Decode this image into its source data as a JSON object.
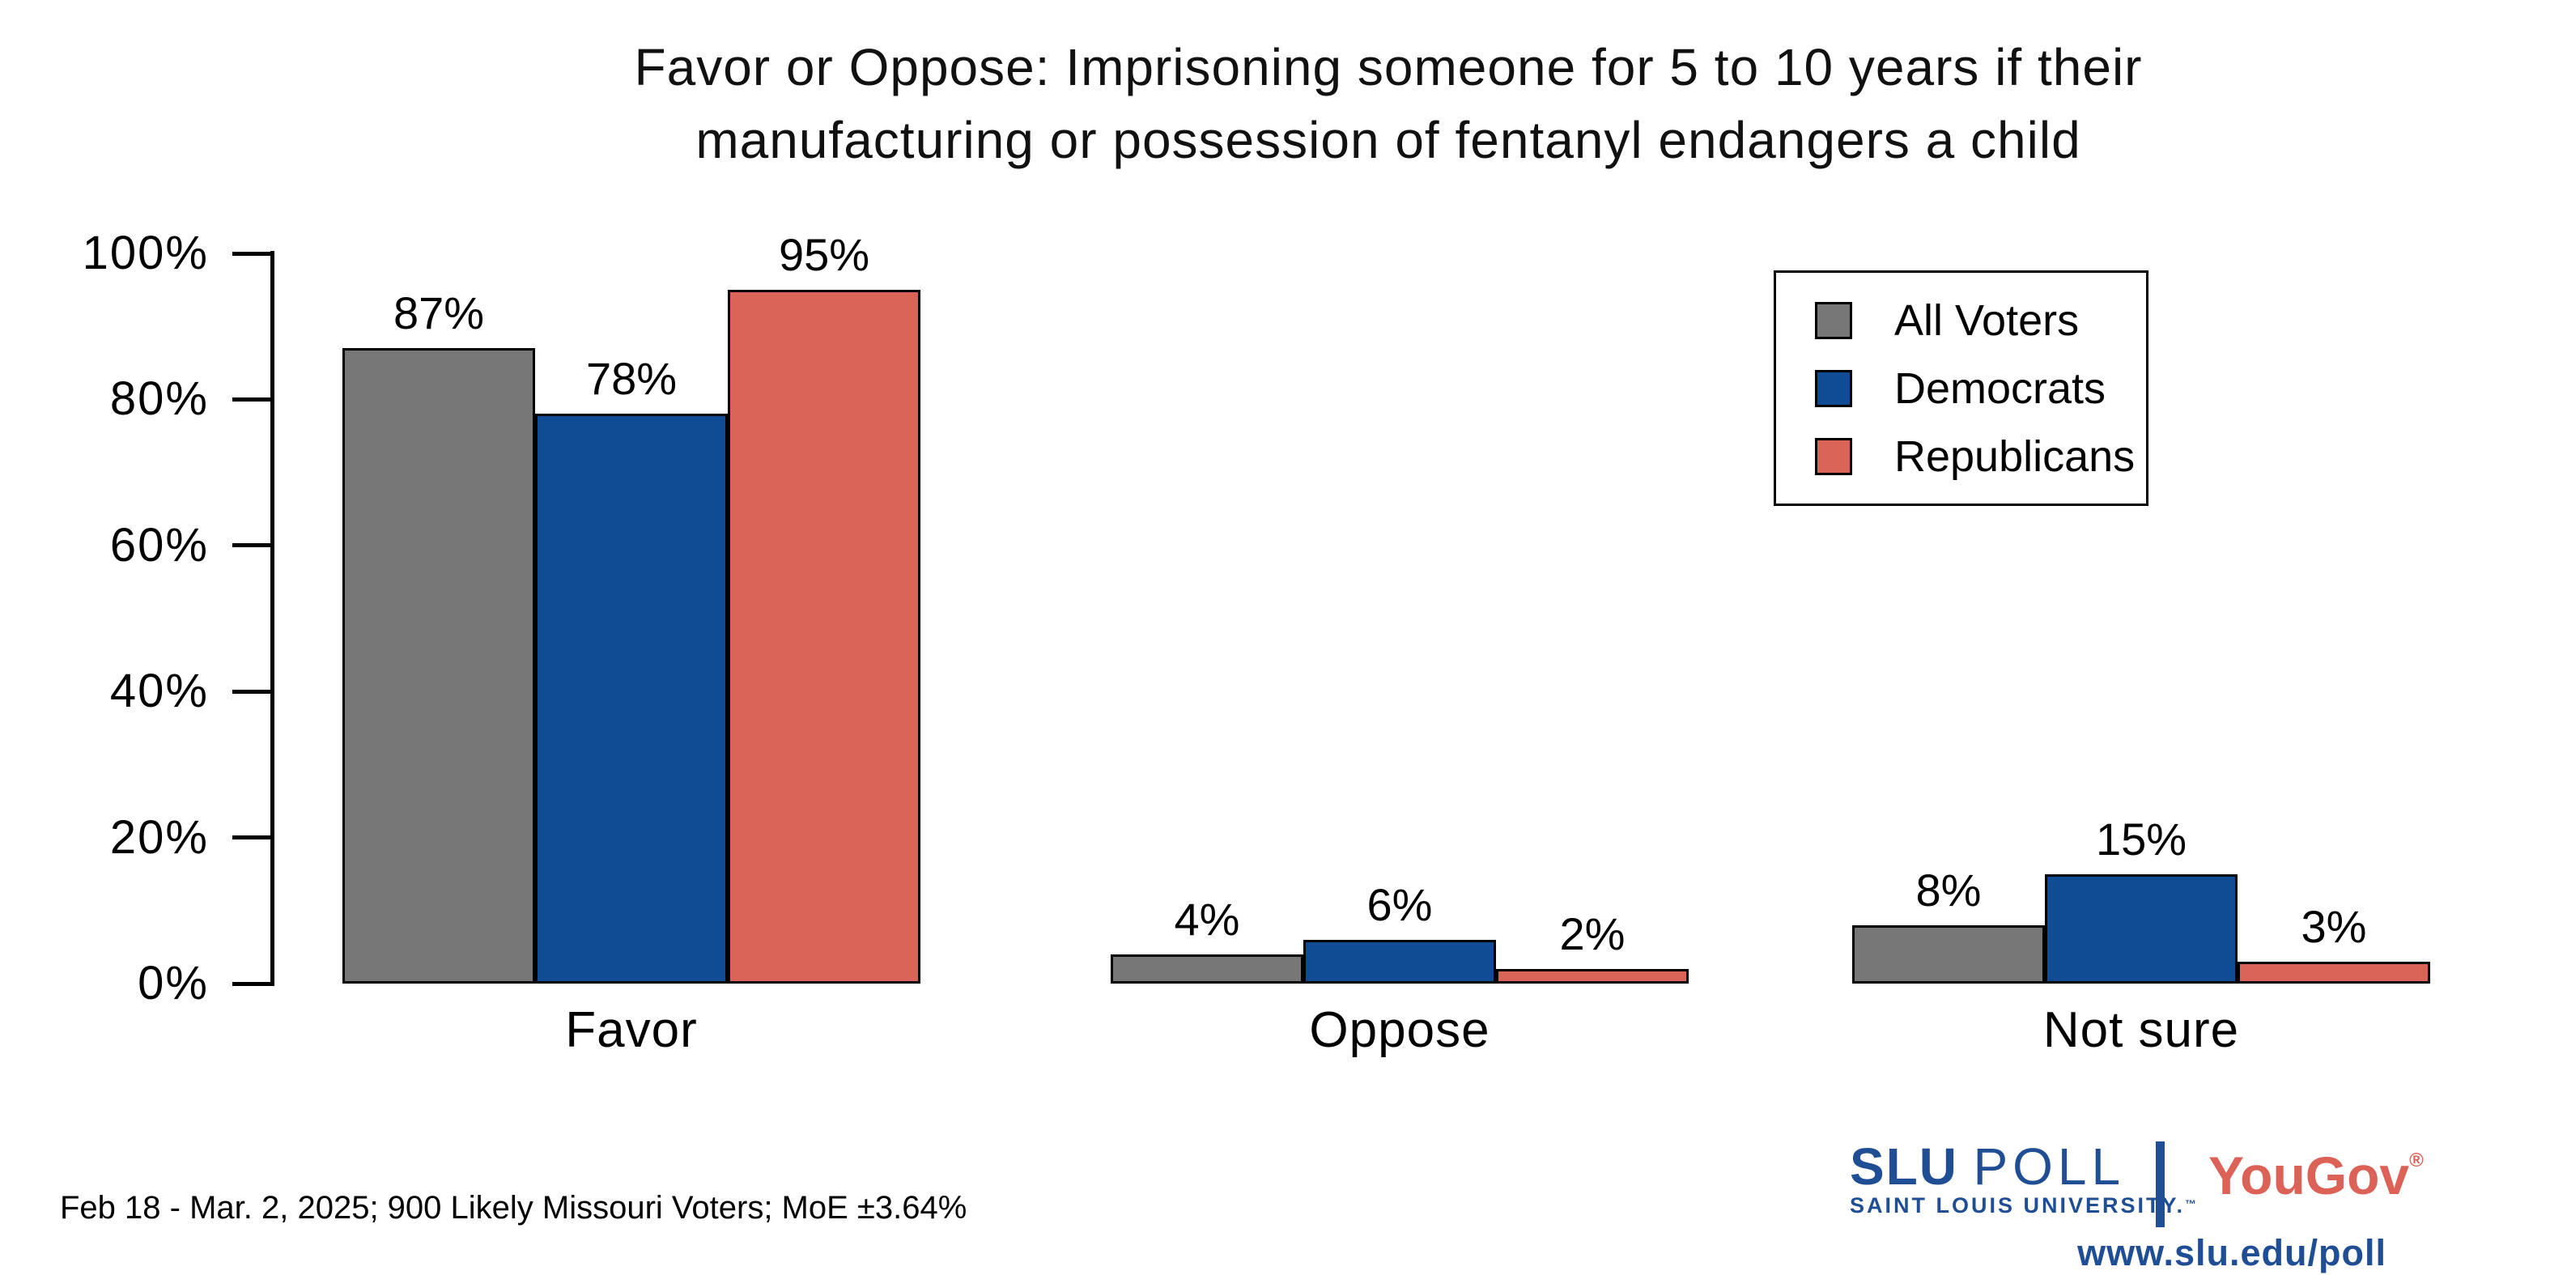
{
  "title": {
    "line1": "Favor or Oppose: Imprisoning someone for 5 to 10 years if their",
    "line2": "manufacturing or possession of fentanyl endangers a child"
  },
  "chart_data": {
    "type": "bar",
    "title": "Favor or Oppose: Imprisoning someone for 5 to 10 years if their manufacturing or possession of fentanyl endangers a child",
    "categories": [
      "Favor",
      "Oppose",
      "Not sure"
    ],
    "series": [
      {
        "name": "All Voters",
        "color": "#777777",
        "values": [
          87,
          4,
          8
        ]
      },
      {
        "name": "Democrats",
        "color": "#0F4C93",
        "values": [
          78,
          6,
          15
        ]
      },
      {
        "name": "Republicans",
        "color": "#DA6457",
        "values": [
          95,
          2,
          3
        ]
      }
    ],
    "xlabel": "",
    "ylabel": "",
    "ylim": [
      0,
      100
    ],
    "yticks_percent": [
      0,
      20,
      40,
      60,
      80,
      100
    ],
    "ytick_suffix": "%",
    "value_suffix": "%",
    "bar_edge_color": "#000000",
    "grid": false,
    "legend_position": "upper-right"
  },
  "footer": {
    "note": "Feb 18 - Mar. 2, 2025; 900 Likely Missouri Voters; MoE ±3.64%"
  },
  "branding": {
    "slu": "SLU",
    "poll": "POLL",
    "subtitle": "SAINT LOUIS UNIVERSITY.",
    "trademark": "™",
    "partner": "YouGov",
    "registered": "®",
    "url": "www.slu.edu/poll",
    "slu_blue": "#1F4E95",
    "partner_coral": "#DC6156"
  }
}
